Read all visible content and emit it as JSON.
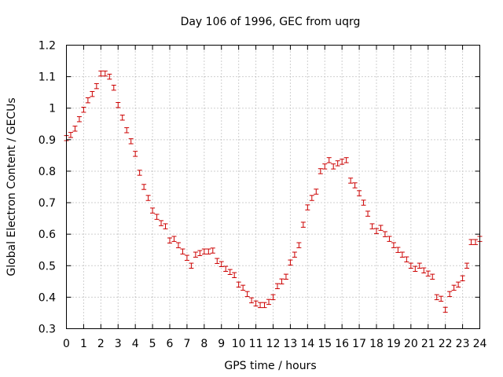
{
  "chart_data": {
    "type": "scatter",
    "title": "Day 106 of 1996, GEC from uqrg",
    "xlabel": "GPS time / hours",
    "ylabel": "Global Electron Content / GECUs",
    "xlim": [
      0,
      24
    ],
    "ylim": [
      0.3,
      1.2
    ],
    "xticks": [
      0,
      1,
      2,
      3,
      4,
      5,
      6,
      7,
      8,
      9,
      10,
      11,
      12,
      13,
      14,
      15,
      16,
      17,
      18,
      19,
      20,
      21,
      22,
      23,
      24
    ],
    "yticks": [
      0.3,
      0.4,
      0.5,
      0.6,
      0.7,
      0.8,
      0.9,
      1.0,
      1.1,
      1.2
    ],
    "ytick_labels": [
      "0.3",
      "0.4",
      "0.5",
      "0.6",
      "0.7",
      "0.8",
      "0.9",
      "1",
      "1.1",
      "1.2"
    ],
    "grid": true,
    "error_half_width": 0.008,
    "series": [
      {
        "name": "GEC",
        "color": "#cc0000",
        "x": [
          0.0,
          0.25,
          0.5,
          0.75,
          1.0,
          1.25,
          1.5,
          1.75,
          2.0,
          2.25,
          2.5,
          2.75,
          3.0,
          3.25,
          3.5,
          3.75,
          4.0,
          4.25,
          4.5,
          4.75,
          5.0,
          5.25,
          5.5,
          5.75,
          6.0,
          6.25,
          6.5,
          6.75,
          7.0,
          7.25,
          7.5,
          7.75,
          8.0,
          8.25,
          8.5,
          8.75,
          9.0,
          9.25,
          9.5,
          9.75,
          10.0,
          10.25,
          10.5,
          10.75,
          11.0,
          11.25,
          11.5,
          11.75,
          12.0,
          12.25,
          12.5,
          12.75,
          13.0,
          13.25,
          13.5,
          13.75,
          14.0,
          14.25,
          14.5,
          14.75,
          15.0,
          15.25,
          15.5,
          15.75,
          16.0,
          16.25,
          16.5,
          16.75,
          17.0,
          17.25,
          17.5,
          17.75,
          18.0,
          18.25,
          18.5,
          18.75,
          19.0,
          19.25,
          19.5,
          19.75,
          20.0,
          20.25,
          20.5,
          20.75,
          21.0,
          21.25,
          21.5,
          21.75,
          22.0,
          22.25,
          22.5,
          22.75,
          23.0,
          23.25,
          23.5,
          23.75,
          24.0
        ],
        "y": [
          0.905,
          0.915,
          0.935,
          0.965,
          0.995,
          1.025,
          1.045,
          1.07,
          1.11,
          1.11,
          1.1,
          1.065,
          1.01,
          0.97,
          0.93,
          0.895,
          0.855,
          0.795,
          0.75,
          0.715,
          0.675,
          0.655,
          0.635,
          0.625,
          0.58,
          0.585,
          0.565,
          0.545,
          0.525,
          0.5,
          0.535,
          0.54,
          0.545,
          0.545,
          0.548,
          0.515,
          0.505,
          0.49,
          0.48,
          0.47,
          0.44,
          0.43,
          0.41,
          0.39,
          0.38,
          0.375,
          0.375,
          0.385,
          0.4,
          0.435,
          0.45,
          0.465,
          0.51,
          0.535,
          0.565,
          0.63,
          0.685,
          0.715,
          0.735,
          0.8,
          0.815,
          0.835,
          0.815,
          0.825,
          0.83,
          0.835,
          0.77,
          0.755,
          0.73,
          0.7,
          0.665,
          0.625,
          0.61,
          0.62,
          0.6,
          0.585,
          0.565,
          0.55,
          0.535,
          0.52,
          0.5,
          0.49,
          0.5,
          0.485,
          0.475,
          0.465,
          0.4,
          0.395,
          0.36,
          0.41,
          0.43,
          0.44,
          0.46,
          0.5,
          0.575,
          0.575,
          0.585
        ]
      }
    ]
  }
}
